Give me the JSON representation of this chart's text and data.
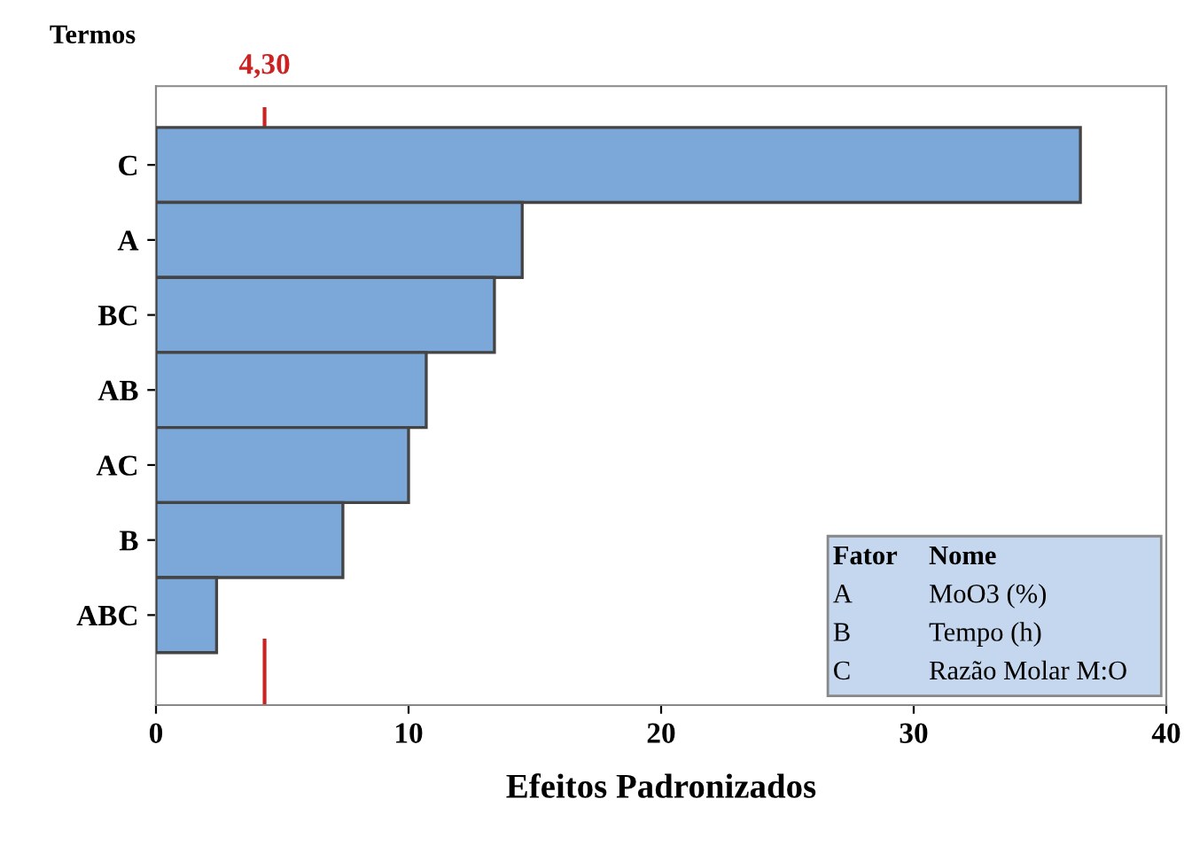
{
  "chart_data": {
    "type": "bar",
    "orientation": "horizontal",
    "ylabel": "Termos",
    "xlabel": "Efeitos Padronizados",
    "categories": [
      "C",
      "A",
      "BC",
      "AB",
      "AC",
      "B",
      "ABC"
    ],
    "values": [
      36.6,
      14.5,
      13.4,
      10.7,
      10.0,
      7.4,
      2.4
    ],
    "color": "#7ba7d9",
    "xlim": [
      0,
      40
    ],
    "xticks": [
      0,
      10,
      20,
      30,
      40
    ],
    "ref_lines": [
      {
        "axis": "x",
        "value": 4.3,
        "label": "4,30",
        "color": "#cc2222",
        "line_style": "dashed"
      }
    ],
    "annotations": [
      "Fator Nome",
      "A MoO3 (%)",
      "B Tempo (h)",
      "C Razão Molar M:O"
    ],
    "grid": false,
    "legend": false
  }
}
